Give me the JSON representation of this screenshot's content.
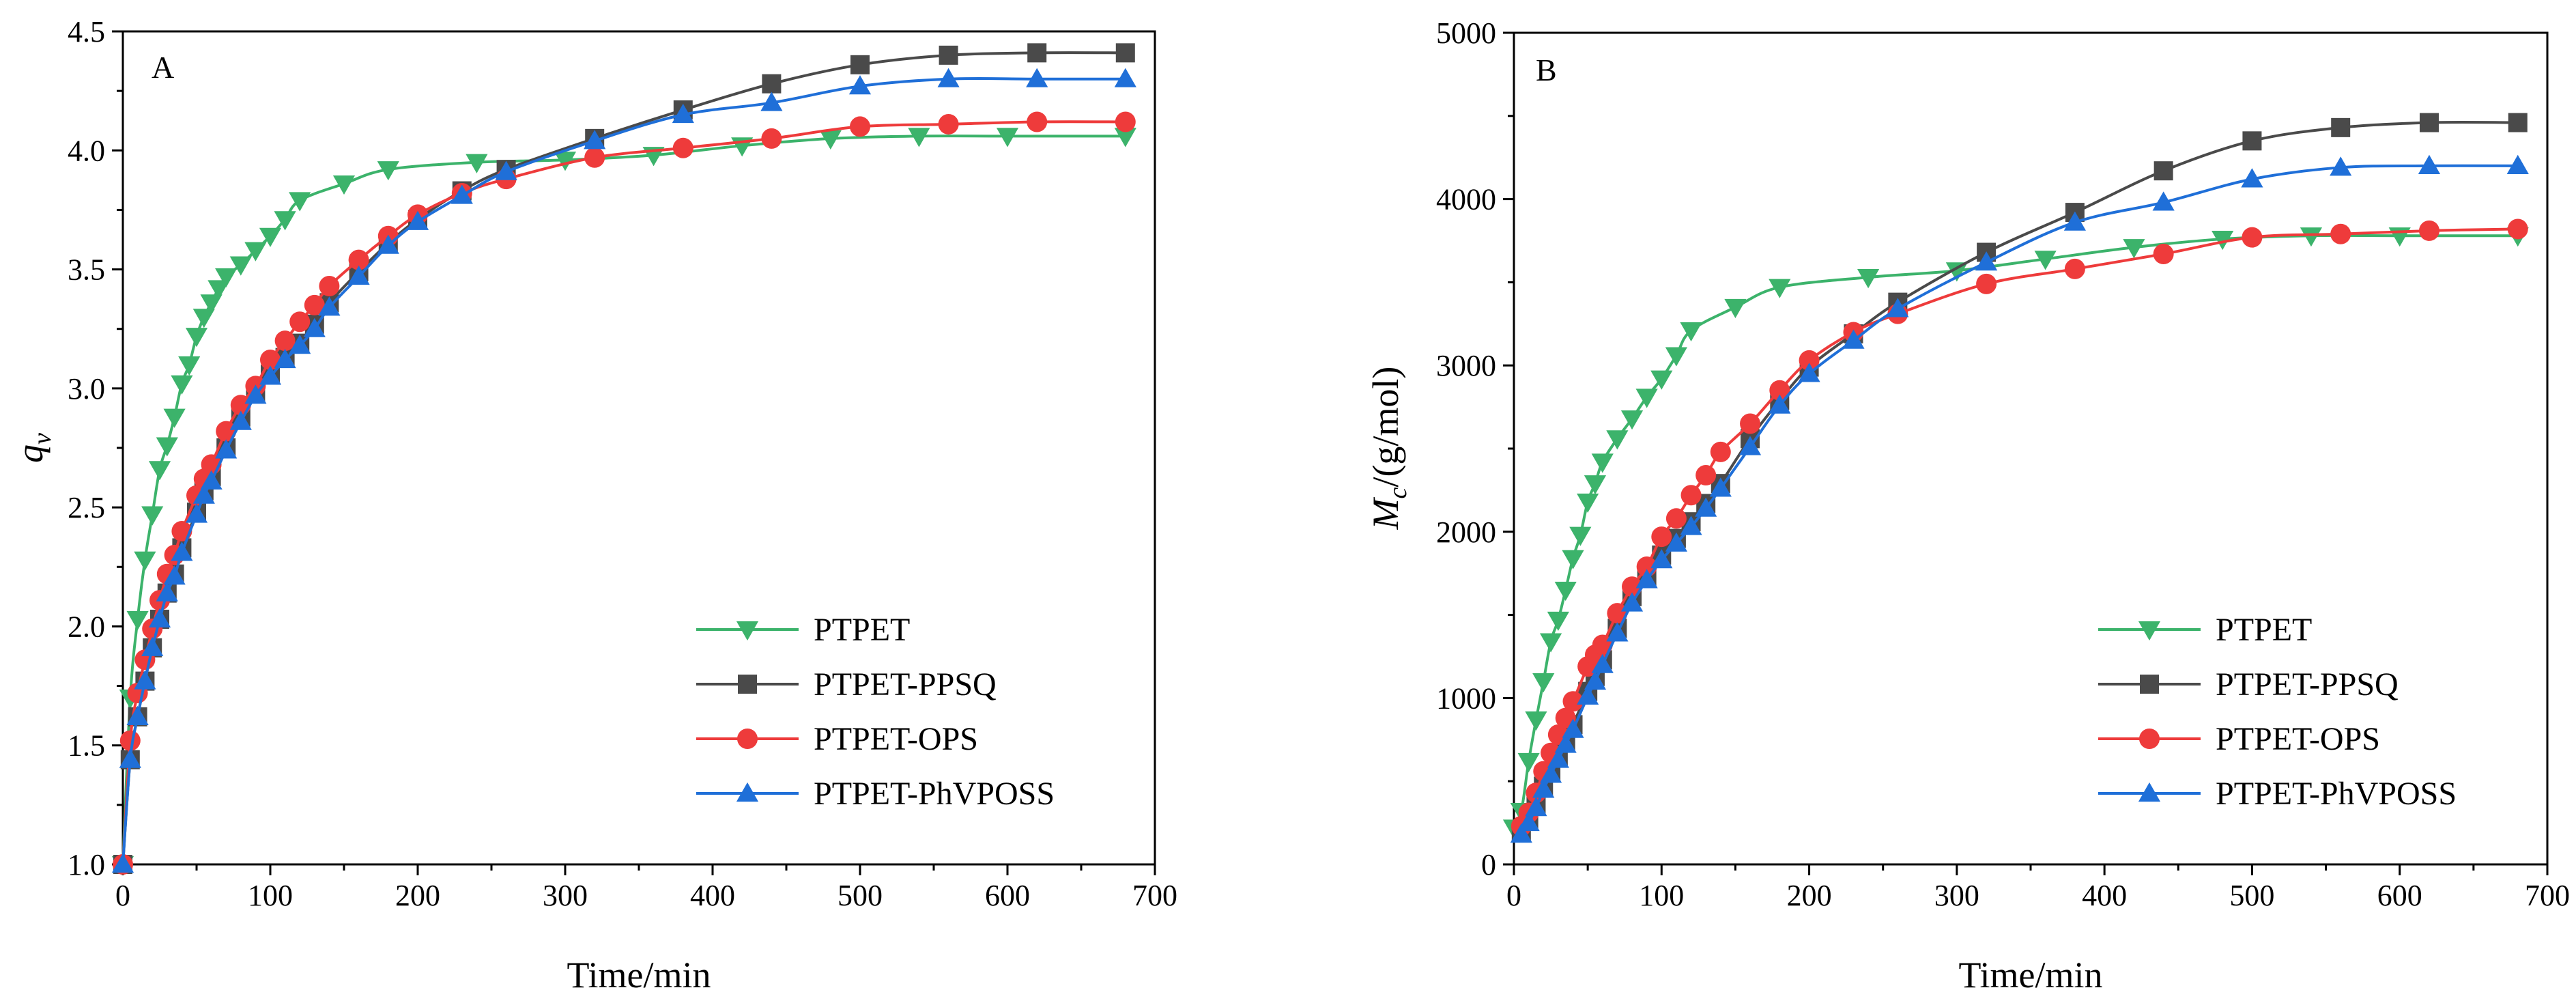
{
  "chart_data": [
    {
      "type": "line",
      "panel_label": "A",
      "xlabel": "Time/min",
      "ylabel": "q",
      "ylabel_subscript": "v",
      "xlim": [
        0,
        700
      ],
      "ylim": [
        1.0,
        4.5
      ],
      "xticks": [
        0,
        100,
        200,
        300,
        400,
        500,
        600,
        700
      ],
      "xtick_labels": [
        "0",
        "100",
        "200",
        "300",
        "400",
        "500",
        "600",
        "700"
      ],
      "yticks": [
        1.0,
        1.5,
        2.0,
        2.5,
        3.0,
        3.5,
        4.0,
        4.5
      ],
      "ytick_labels": [
        "1.0",
        "1.5",
        "2.0",
        "2.5",
        "3.0",
        "3.5",
        "4.0",
        "4.5"
      ],
      "legend_position": "bottom-right",
      "series": [
        {
          "name": "PTPET",
          "color": "#3cb36b",
          "marker": "triangle-down",
          "x": [
            0,
            5,
            10,
            15,
            20,
            25,
            30,
            35,
            40,
            45,
            50,
            55,
            60,
            65,
            70,
            80,
            90,
            100,
            110,
            120,
            150,
            180,
            240,
            300,
            360,
            420,
            480,
            540,
            600,
            680
          ],
          "y": [
            1.0,
            1.7,
            2.03,
            2.28,
            2.47,
            2.66,
            2.76,
            2.88,
            3.02,
            3.1,
            3.22,
            3.3,
            3.36,
            3.42,
            3.47,
            3.52,
            3.58,
            3.64,
            3.71,
            3.79,
            3.86,
            3.92,
            3.95,
            3.96,
            3.98,
            4.02,
            4.05,
            4.06,
            4.06,
            4.06
          ]
        },
        {
          "name": "PTPET-PPSQ",
          "color": "#4a4a4a",
          "marker": "square",
          "x": [
            0,
            5,
            10,
            15,
            20,
            25,
            30,
            35,
            40,
            50,
            55,
            60,
            70,
            80,
            90,
            100,
            110,
            120,
            130,
            140,
            160,
            180,
            200,
            230,
            260,
            320,
            380,
            440,
            500,
            560,
            620,
            680
          ],
          "y": [
            1.0,
            1.44,
            1.62,
            1.77,
            1.91,
            2.03,
            2.14,
            2.22,
            2.33,
            2.48,
            2.57,
            2.63,
            2.75,
            2.88,
            2.98,
            3.06,
            3.13,
            3.19,
            3.27,
            3.36,
            3.49,
            3.61,
            3.71,
            3.83,
            3.92,
            4.05,
            4.17,
            4.28,
            4.36,
            4.4,
            4.41,
            4.41
          ]
        },
        {
          "name": "PTPET-OPS",
          "color": "#ee3b3b",
          "marker": "circle",
          "x": [
            0,
            5,
            10,
            15,
            20,
            25,
            30,
            35,
            40,
            50,
            55,
            60,
            70,
            80,
            90,
            100,
            110,
            120,
            130,
            140,
            160,
            180,
            200,
            230,
            260,
            320,
            380,
            440,
            500,
            560,
            620,
            680
          ],
          "y": [
            1.0,
            1.52,
            1.72,
            1.86,
            1.99,
            2.11,
            2.22,
            2.3,
            2.4,
            2.55,
            2.62,
            2.68,
            2.82,
            2.93,
            3.01,
            3.12,
            3.2,
            3.28,
            3.35,
            3.43,
            3.54,
            3.64,
            3.73,
            3.82,
            3.88,
            3.97,
            4.01,
            4.05,
            4.1,
            4.11,
            4.12,
            4.12
          ]
        },
        {
          "name": "PTPET-PhVPOSS",
          "color": "#1f6fd8",
          "marker": "triangle-up",
          "x": [
            0,
            5,
            10,
            15,
            20,
            25,
            30,
            35,
            40,
            50,
            55,
            60,
            70,
            80,
            90,
            100,
            110,
            120,
            130,
            140,
            160,
            180,
            200,
            230,
            260,
            320,
            380,
            440,
            500,
            560,
            620,
            680
          ],
          "y": [
            1.0,
            1.44,
            1.62,
            1.77,
            1.91,
            2.03,
            2.14,
            2.21,
            2.31,
            2.47,
            2.55,
            2.61,
            2.74,
            2.86,
            2.97,
            3.05,
            3.12,
            3.18,
            3.25,
            3.34,
            3.47,
            3.6,
            3.7,
            3.81,
            3.91,
            4.04,
            4.15,
            4.2,
            4.27,
            4.3,
            4.3,
            4.3
          ]
        }
      ]
    },
    {
      "type": "line",
      "panel_label": "B",
      "xlabel": "Time/min",
      "ylabel": "M",
      "ylabel_subscript": "c",
      "ylabel_suffix": "/(g/mol)",
      "xlim": [
        0,
        700
      ],
      "ylim": [
        0,
        5000
      ],
      "xticks": [
        0,
        100,
        200,
        300,
        400,
        500,
        600,
        700
      ],
      "xtick_labels": [
        "0",
        "100",
        "200",
        "300",
        "400",
        "500",
        "600",
        "700"
      ],
      "yticks": [
        0,
        1000,
        2000,
        3000,
        4000,
        5000
      ],
      "ytick_labels": [
        "0",
        "1000",
        "2000",
        "3000",
        "4000",
        "5000"
      ],
      "legend_position": "bottom-right",
      "series": [
        {
          "name": "PTPET",
          "color": "#3cb36b",
          "marker": "triangle-down",
          "x": [
            0,
            5,
            10,
            15,
            20,
            25,
            30,
            35,
            40,
            45,
            50,
            55,
            60,
            70,
            80,
            90,
            100,
            110,
            120,
            150,
            180,
            240,
            300,
            360,
            420,
            480,
            540,
            600,
            680
          ],
          "y": [
            220,
            320,
            620,
            870,
            1100,
            1340,
            1470,
            1650,
            1840,
            1980,
            2180,
            2290,
            2420,
            2560,
            2680,
            2810,
            2920,
            3060,
            3210,
            3350,
            3470,
            3530,
            3570,
            3640,
            3710,
            3760,
            3780,
            3780,
            3780
          ]
        },
        {
          "name": "PTPET-PPSQ",
          "color": "#4a4a4a",
          "marker": "square",
          "x": [
            5,
            10,
            15,
            20,
            25,
            30,
            35,
            40,
            50,
            55,
            60,
            70,
            80,
            90,
            100,
            110,
            120,
            130,
            140,
            160,
            180,
            200,
            230,
            260,
            320,
            380,
            440,
            500,
            560,
            620,
            680
          ],
          "y": [
            190,
            260,
            350,
            470,
            560,
            650,
            740,
            840,
            1040,
            1130,
            1230,
            1420,
            1610,
            1730,
            1860,
            1960,
            2060,
            2170,
            2290,
            2560,
            2790,
            2990,
            3190,
            3380,
            3680,
            3920,
            4170,
            4350,
            4430,
            4460,
            4460
          ]
        },
        {
          "name": "PTPET-OPS",
          "color": "#ee3b3b",
          "marker": "circle",
          "x": [
            5,
            10,
            15,
            20,
            25,
            30,
            35,
            40,
            50,
            55,
            60,
            70,
            80,
            90,
            100,
            110,
            120,
            130,
            140,
            160,
            180,
            200,
            230,
            260,
            320,
            380,
            440,
            500,
            560,
            620,
            680
          ],
          "y": [
            230,
            310,
            430,
            560,
            670,
            780,
            880,
            980,
            1190,
            1260,
            1320,
            1510,
            1670,
            1790,
            1970,
            2080,
            2220,
            2340,
            2480,
            2650,
            2850,
            3030,
            3200,
            3310,
            3490,
            3580,
            3670,
            3770,
            3790,
            3810,
            3820
          ]
        },
        {
          "name": "PTPET-PhVPOSS",
          "color": "#1f6fd8",
          "marker": "triangle-up",
          "x": [
            5,
            10,
            15,
            20,
            25,
            30,
            35,
            40,
            50,
            55,
            60,
            70,
            80,
            90,
            100,
            110,
            120,
            130,
            140,
            160,
            180,
            200,
            230,
            260,
            320,
            380,
            440,
            500,
            560,
            620,
            680
          ],
          "y": [
            180,
            250,
            340,
            450,
            540,
            630,
            720,
            810,
            1010,
            1100,
            1200,
            1390,
            1570,
            1710,
            1830,
            1930,
            2030,
            2140,
            2260,
            2510,
            2760,
            2950,
            3150,
            3340,
            3620,
            3860,
            3980,
            4120,
            4190,
            4200,
            4200
          ]
        }
      ]
    }
  ]
}
